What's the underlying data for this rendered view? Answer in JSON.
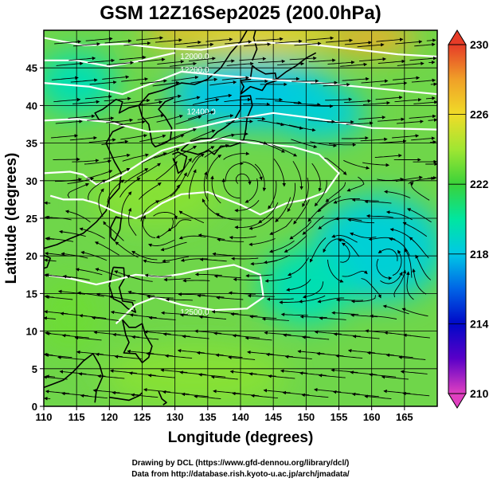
{
  "chart_data": {
    "type": "heatmap",
    "title": "GSM 12Z16Sep2025 (200.0hPa)",
    "xlabel": "Longitude (degrees)",
    "ylabel": "Latitude  (degrees)",
    "xlim": [
      110,
      170
    ],
    "ylim": [
      0,
      50
    ],
    "x_ticks": [
      "110",
      "115",
      "120",
      "125",
      "130",
      "135",
      "140",
      "145",
      "150",
      "155",
      "160",
      "165"
    ],
    "y_ticks": [
      "0",
      "5",
      "10",
      "15",
      "20",
      "25",
      "30",
      "35",
      "40",
      "45"
    ],
    "x_tick_values": [
      110,
      115,
      120,
      125,
      130,
      135,
      140,
      145,
      150,
      155,
      160,
      165
    ],
    "y_tick_values": [
      0,
      5,
      10,
      15,
      20,
      25,
      30,
      35,
      40,
      45
    ],
    "grid": true,
    "variable": "temperature (K) shading with streamlines and geopotential height contours",
    "colorbar": {
      "min": 210,
      "max": 230,
      "ticks": [
        "210",
        "214",
        "218",
        "222",
        "226",
        "230"
      ],
      "tick_values": [
        210,
        214,
        218,
        222,
        226,
        230
      ]
    },
    "contour_labels": [
      "12000.0",
      "12200.0",
      "12400.0",
      "12500.0"
    ],
    "field_description": [
      {
        "region": "north-central strip 125-160E near 48-50N",
        "value": 226
      },
      {
        "region": "Sea of Japan / Hokkaido 130-155E 38-46N",
        "value": 218
      },
      {
        "region": "western Pacific 150-170E 15-28N",
        "value": 219
      },
      {
        "region": "broad tropics and subtropics",
        "value": 222
      }
    ]
  },
  "credits": {
    "line1": "Drawing by DCL (https://www.gfd-dennou.org/library/dcl/)",
    "line2": "Data from http://database.rish.kyoto-u.ac.jp/arch/jmadata/"
  },
  "colors": {
    "stops": [
      "#e040c0",
      "#5a00c8",
      "#0008c8",
      "#0064e6",
      "#00c8e6",
      "#00e6a0",
      "#3ad23a",
      "#a0e632",
      "#f0dc28",
      "#f0a028",
      "#e63c28"
    ],
    "streamline": "#000000",
    "contour": "#ffffff",
    "coast": "#000000"
  }
}
